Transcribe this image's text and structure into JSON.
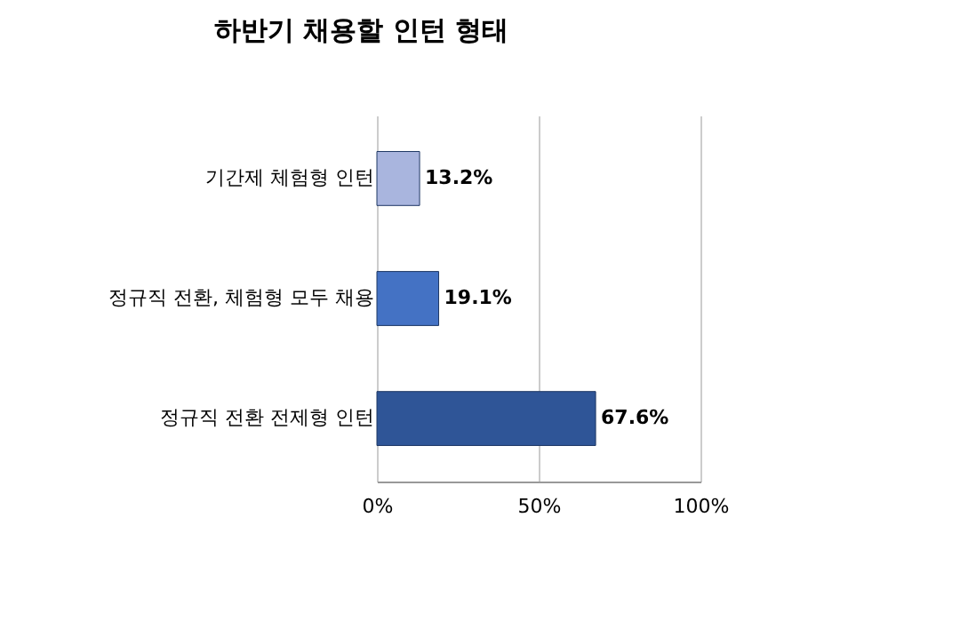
{
  "chart_data": {
    "type": "bar",
    "orientation": "horizontal",
    "title": "하반기 채용할 인턴 형태",
    "categories": [
      "기간제 체험형 인턴",
      "정규직 전환, 체험형 모두 채용",
      "정규직 전환 전제형 인턴"
    ],
    "values": [
      13.2,
      19.1,
      67.6
    ],
    "colors": [
      "#a9b5de",
      "#4472c4",
      "#2f5597"
    ],
    "value_labels": [
      "13.2%",
      "19.1%",
      "67.6%"
    ],
    "xlim": [
      0,
      100
    ],
    "xticks": [
      {
        "value": 0,
        "label": "0%"
      },
      {
        "value": 50,
        "label": "50%"
      },
      {
        "value": 100,
        "label": "100%"
      }
    ],
    "grid": "x"
  }
}
